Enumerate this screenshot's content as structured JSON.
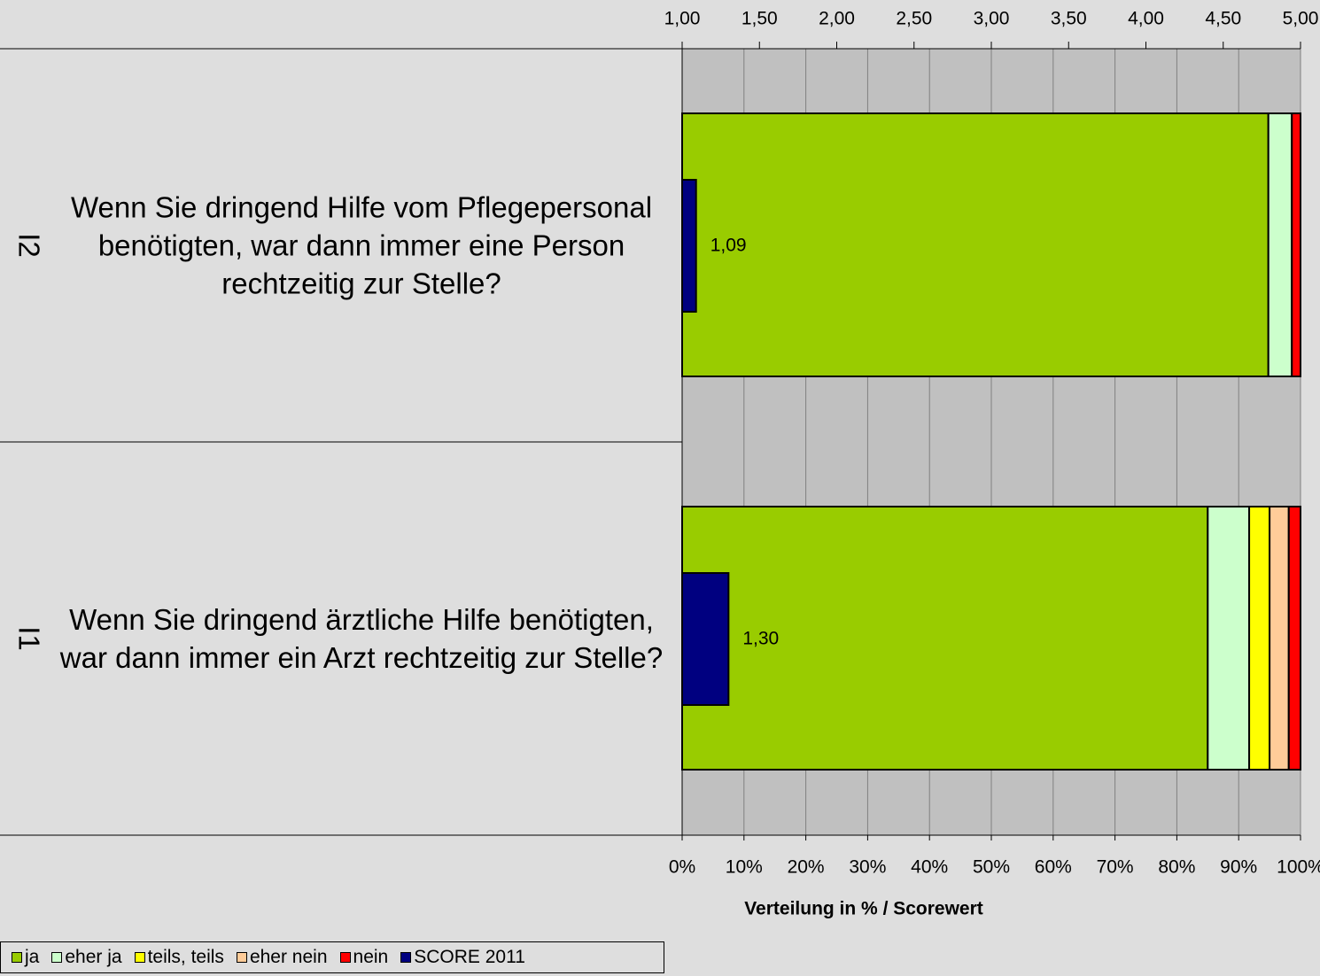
{
  "chart_data": {
    "type": "stacked_barh",
    "xlabel": "Verteilung in % / Scorewert",
    "codes": [
      "I2",
      "I1"
    ],
    "categories": [
      "Wenn Sie dringend Hilfe vom Pflegepersonal benötigten, war dann immer eine Person rechtzeitig zur Stelle?",
      "Wenn Sie dringend ärztliche Hilfe benötigten, war dann immer ein Arzt rechtzeitig zur Stelle?"
    ],
    "series": [
      {
        "name": "ja",
        "color": "#99cc00",
        "values": [
          94.8,
          85.0
        ]
      },
      {
        "name": "eher ja",
        "color": "#ccffcc",
        "values": [
          3.8,
          6.7
        ]
      },
      {
        "name": "teils, teils",
        "color": "#ffff00",
        "values": [
          0,
          3.3
        ]
      },
      {
        "name": "eher nein",
        "color": "#ffcc99",
        "values": [
          0,
          3.1
        ]
      },
      {
        "name": "nein",
        "color": "#ff0000",
        "values": [
          1.4,
          1.9
        ]
      },
      {
        "name": "SCORE 2011",
        "color": "#000080",
        "axis": "x2",
        "values": [
          1.09,
          1.3
        ],
        "value_labels": [
          "1,09",
          "1,30"
        ]
      }
    ],
    "xlim": [
      0,
      100
    ],
    "xticks": [
      {
        "value": 0,
        "label": "0%"
      },
      {
        "value": 10,
        "label": "10%"
      },
      {
        "value": 20,
        "label": "20%"
      },
      {
        "value": 30,
        "label": "30%"
      },
      {
        "value": 40,
        "label": "40%"
      },
      {
        "value": 50,
        "label": "50%"
      },
      {
        "value": 60,
        "label": "60%"
      },
      {
        "value": 70,
        "label": "70%"
      },
      {
        "value": 80,
        "label": "80%"
      },
      {
        "value": 90,
        "label": "90%"
      },
      {
        "value": 100,
        "label": "100%"
      }
    ],
    "x2lim": [
      1,
      5
    ],
    "x2ticks": [
      {
        "value": 1,
        "label": "1,00"
      },
      {
        "value": 1.5,
        "label": "1,50"
      },
      {
        "value": 2,
        "label": "2,00"
      },
      {
        "value": 2.5,
        "label": "2,50"
      },
      {
        "value": 3,
        "label": "3,00"
      },
      {
        "value": 3.5,
        "label": "3,50"
      },
      {
        "value": 4,
        "label": "4,00"
      },
      {
        "value": 4.5,
        "label": "4,50"
      },
      {
        "value": 5,
        "label": "5,00"
      }
    ],
    "grid": true
  }
}
